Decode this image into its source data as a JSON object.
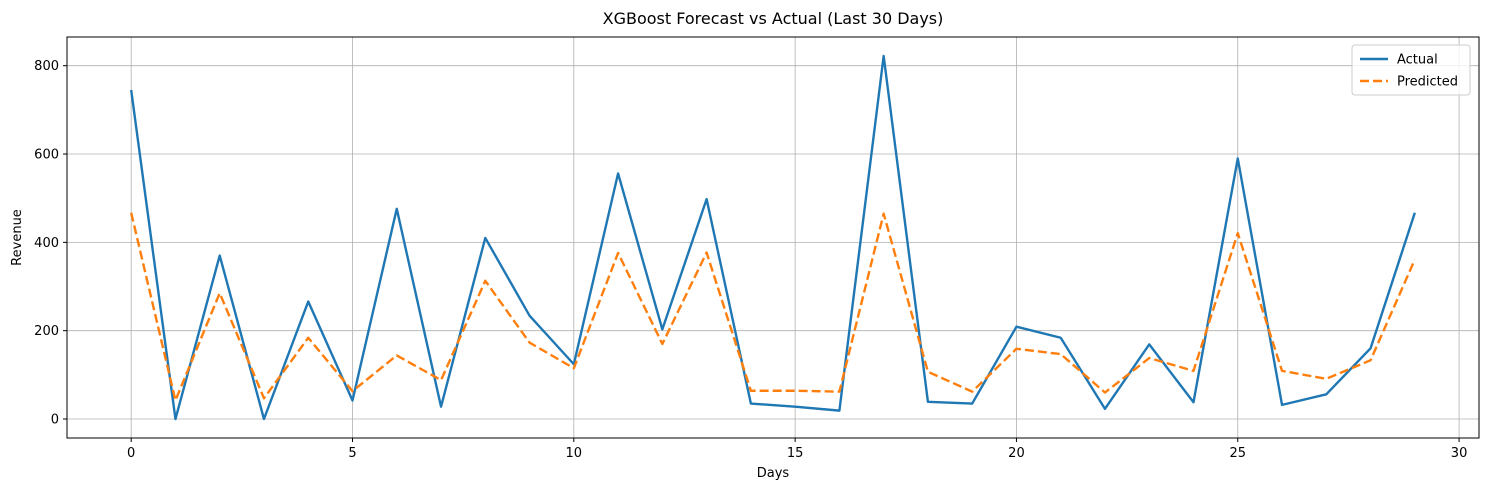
{
  "chart_data": {
    "type": "line",
    "title": "XGBoost Forecast vs Actual (Last 30 Days)",
    "xlabel": "Days",
    "ylabel": "Revenue",
    "xlim": [
      -1.45,
      30.45
    ],
    "ylim": [
      -43,
      865
    ],
    "xticks": [
      0,
      5,
      10,
      15,
      20,
      25,
      30
    ],
    "yticks": [
      0,
      200,
      400,
      600,
      800
    ],
    "grid": true,
    "legend_position": "top-right",
    "x": [
      0,
      1,
      2,
      3,
      4,
      5,
      6,
      7,
      8,
      9,
      10,
      11,
      12,
      13,
      14,
      15,
      16,
      17,
      18,
      19,
      20,
      21,
      22,
      23,
      24,
      25,
      26,
      27,
      28,
      29
    ],
    "series": [
      {
        "name": "Actual",
        "color": "#1f77b4",
        "style": "solid",
        "values": [
          745,
          0,
          370,
          0,
          266,
          42,
          476,
          28,
          410,
          234,
          124,
          556,
          203,
          498,
          35,
          28,
          19,
          822,
          39,
          35,
          209,
          184,
          23,
          169,
          38,
          590,
          32,
          56,
          160,
          467
        ]
      },
      {
        "name": "Predicted",
        "color": "#ff7f0e",
        "style": "dashed",
        "values": [
          467,
          42,
          285,
          47,
          184,
          63,
          144,
          88,
          313,
          173,
          115,
          376,
          170,
          377,
          64,
          64,
          62,
          465,
          107,
          62,
          159,
          147,
          60,
          138,
          109,
          421,
          109,
          91,
          133,
          361
        ]
      }
    ]
  }
}
